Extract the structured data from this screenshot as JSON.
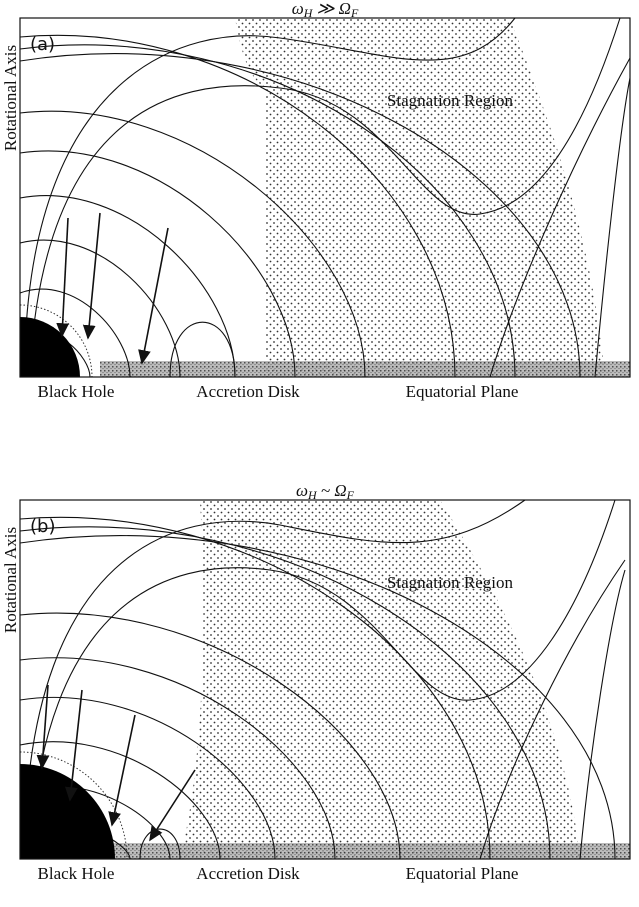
{
  "panels": [
    {
      "title": {
        "lhs": "ω",
        "lhs_sub": "H",
        "op": "≫",
        "rhs": "Ω",
        "rhs_sub": "F"
      },
      "label": "(a)",
      "axis_label": "Rotational Axis",
      "region_label": "Stagnation Region",
      "bottom_labels": [
        "Black Hole",
        "Accretion Disk",
        "Equatorial Plane"
      ]
    },
    {
      "title": {
        "lhs": "ω",
        "lhs_sub": "H",
        "op": "~",
        "rhs": "Ω",
        "rhs_sub": "F"
      },
      "label": "(b)",
      "axis_label": "Rotational Axis",
      "region_label": "Stagnation Region",
      "bottom_labels": [
        "Black Hole",
        "Accretion Disk",
        "Equatorial Plane"
      ]
    }
  ]
}
